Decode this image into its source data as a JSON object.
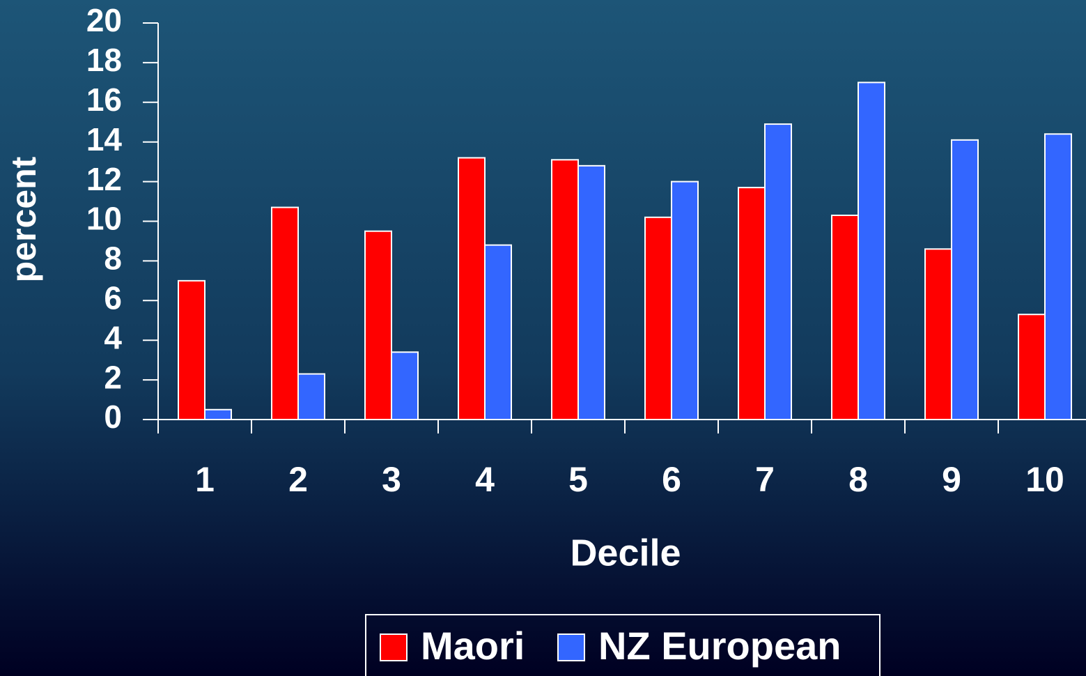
{
  "chart_data": {
    "type": "bar",
    "x_label": "Decile",
    "y_label": "percent",
    "categories": [
      "1",
      "2",
      "3",
      "4",
      "5",
      "6",
      "7",
      "8",
      "9",
      "10"
    ],
    "series": [
      {
        "name": "Maori",
        "color": "#ff0000",
        "values": [
          7.0,
          10.7,
          9.5,
          13.2,
          13.1,
          10.2,
          11.7,
          10.3,
          8.6,
          5.3
        ]
      },
      {
        "name": "NZ European",
        "color": "#3366ff",
        "values": [
          0.5,
          2.3,
          3.4,
          8.8,
          12.8,
          12.0,
          14.9,
          17.0,
          14.1,
          14.4
        ]
      }
    ],
    "ylim": [
      0,
      20
    ],
    "yticks": [
      0,
      2,
      4,
      6,
      8,
      10,
      12,
      14,
      16,
      18,
      20
    ],
    "legend": "bottom"
  }
}
